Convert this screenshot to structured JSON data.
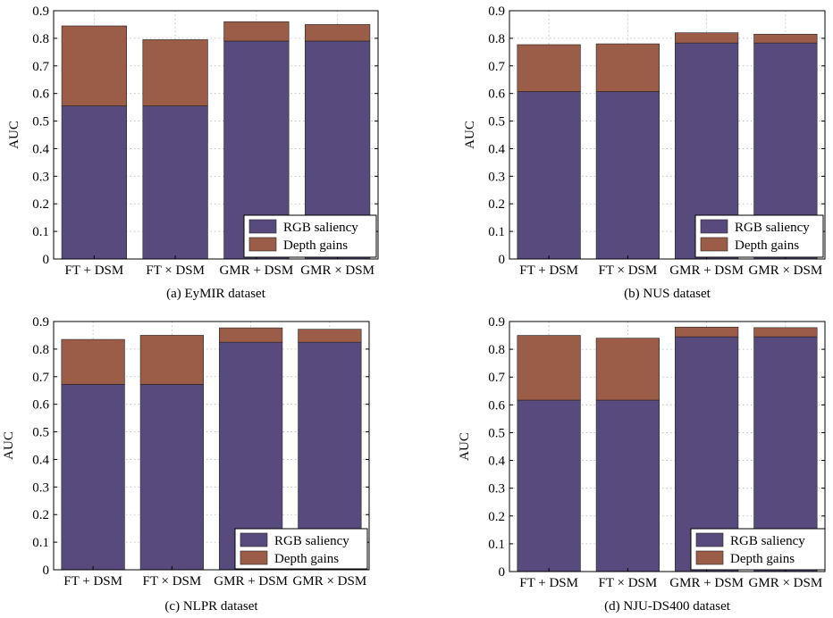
{
  "legend": {
    "rgb_label": "RGB saliency",
    "depth_label": "Depth gains",
    "rgb_color": "#584a7c",
    "depth_color": "#9b5c48"
  },
  "chart_data": [
    {
      "type": "bar",
      "stacked": true,
      "caption": "(a) EyMIR dataset",
      "ylabel": "AUC",
      "ylim": [
        0,
        0.9
      ],
      "yticks": [
        "0",
        "0.1",
        "0.2",
        "0.3",
        "0.4",
        "0.5",
        "0.6",
        "0.7",
        "0.8",
        "0.9"
      ],
      "categories": [
        "FT + DSM",
        "FT × DSM",
        "GMR + DSM",
        "GMR × DSM"
      ],
      "series": [
        {
          "name": "RGB saliency",
          "values": [
            0.555,
            0.555,
            0.79,
            0.79
          ]
        },
        {
          "name": "Depth gains",
          "values": [
            0.29,
            0.24,
            0.07,
            0.06
          ]
        }
      ],
      "grid": true,
      "legend_position": "bottom-right"
    },
    {
      "type": "bar",
      "stacked": true,
      "caption": "(b) NUS dataset",
      "ylabel": "AUC",
      "ylim": [
        0,
        0.9
      ],
      "yticks": [
        "0",
        "0.1",
        "0.2",
        "0.3",
        "0.4",
        "0.5",
        "0.6",
        "0.7",
        "0.8",
        "0.9"
      ],
      "categories": [
        "FT + DSM",
        "FT × DSM",
        "GMR + DSM",
        "GMR × DSM"
      ],
      "series": [
        {
          "name": "RGB saliency",
          "values": [
            0.607,
            0.607,
            0.783,
            0.783
          ]
        },
        {
          "name": "Depth gains",
          "values": [
            0.17,
            0.173,
            0.037,
            0.032
          ]
        }
      ],
      "grid": true,
      "legend_position": "bottom-right"
    },
    {
      "type": "bar",
      "stacked": true,
      "caption": "(c) NLPR dataset",
      "ylabel": "AUC",
      "ylim": [
        0,
        0.9
      ],
      "yticks": [
        "0",
        "0.1",
        "0.2",
        "0.3",
        "0.4",
        "0.5",
        "0.6",
        "0.7",
        "0.8",
        "0.9"
      ],
      "categories": [
        "FT + DSM",
        "FT × DSM",
        "GMR + DSM",
        "GMR × DSM"
      ],
      "series": [
        {
          "name": "RGB saliency",
          "values": [
            0.672,
            0.672,
            0.825,
            0.825
          ]
        },
        {
          "name": "Depth gains",
          "values": [
            0.163,
            0.178,
            0.052,
            0.047
          ]
        }
      ],
      "grid": true,
      "legend_position": "bottom-right"
    },
    {
      "type": "bar",
      "stacked": true,
      "caption": "(d) NJU-DS400 dataset",
      "ylabel": "AUC",
      "ylim": [
        0,
        0.9
      ],
      "yticks": [
        "0",
        "0.1",
        "0.2",
        "0.3",
        "0.4",
        "0.5",
        "0.6",
        "0.7",
        "0.8",
        "0.9"
      ],
      "categories": [
        "FT + DSM",
        "FT × DSM",
        "GMR + DSM",
        "GMR × DSM"
      ],
      "series": [
        {
          "name": "RGB saliency",
          "values": [
            0.617,
            0.617,
            0.845,
            0.845
          ]
        },
        {
          "name": "Depth gains",
          "values": [
            0.233,
            0.223,
            0.035,
            0.033
          ]
        }
      ],
      "grid": true,
      "legend_position": "bottom-right"
    }
  ]
}
